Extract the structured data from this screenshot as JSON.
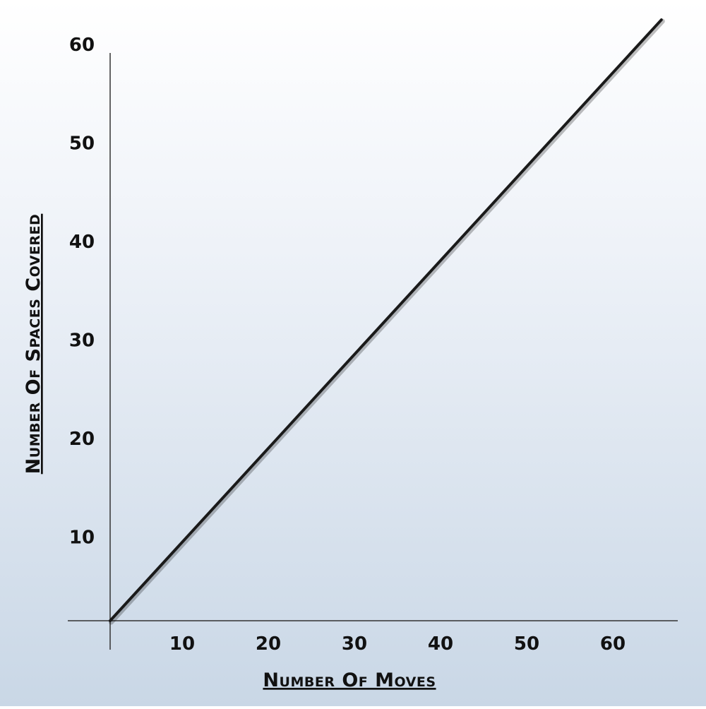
{
  "chart_data": {
    "type": "line",
    "title": "",
    "xlabel": "Number Of Moves",
    "ylabel": "Number Of Spaces Covered",
    "xlim": [
      0,
      70
    ],
    "ylim": [
      0,
      65
    ],
    "x_ticks": [
      10,
      20,
      30,
      40,
      50,
      60
    ],
    "y_ticks": [
      10,
      20,
      30,
      40,
      50,
      60
    ],
    "grid": false,
    "legend": "none",
    "series": [
      {
        "x": [
          0,
          64
        ],
        "y": [
          0,
          61
        ],
        "color": "#1a1a1a"
      }
    ]
  }
}
